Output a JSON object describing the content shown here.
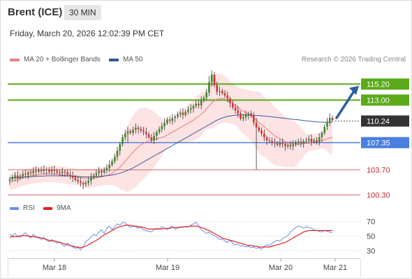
{
  "header": {
    "title": "Brent (ICE)",
    "interval": "30 MIN",
    "timestamp": "Friday, March 20, 2026 12:02:39 PM CET"
  },
  "legend": {
    "ma20_label": "MA 20 + Bollinger Bands",
    "ma50_label": "MA 50",
    "credit": "Research © 2026 Trading Central"
  },
  "colors": {
    "ma20": "#e8777a",
    "ma50": "#3a5a94",
    "bollinger_fill": "#fddede",
    "resistance": "#5aaa1a",
    "pivot": "#4a7fe0",
    "support": "#d9535a",
    "candle_up": "#3a8a2a",
    "candle_down": "#d93030",
    "current_price": "#333333",
    "arrow": "#2b5ca8",
    "rsi": "#6a8ee8",
    "rsi_ma": "#e02020"
  },
  "chart_data": [
    {
      "type": "candlestick",
      "title": "Brent (ICE)",
      "interval": "30 MIN",
      "x_labels": [
        "Mar 18",
        "Mar 19",
        "Mar 20",
        "Mar 21"
      ],
      "ylim": [
        99.3,
        117.8
      ],
      "levels": [
        {
          "role": "resistance",
          "value": 115.2,
          "label": "115.20"
        },
        {
          "role": "resistance",
          "value": 113.0,
          "label": "113.00"
        },
        {
          "role": "current",
          "value": 110.24,
          "label": "110.24"
        },
        {
          "role": "pivot",
          "value": 107.35,
          "label": "107.35"
        },
        {
          "role": "support",
          "value": 103.7,
          "label": "103.70"
        },
        {
          "role": "support",
          "value": 100.3,
          "label": "100.30"
        }
      ],
      "close": [
        102.4,
        102.6,
        102.9,
        102.5,
        102.8,
        103.1,
        103.0,
        103.3,
        103.2,
        103.5,
        103.4,
        103.6,
        103.5,
        103.7,
        103.6,
        103.4,
        103.6,
        103.5,
        103.3,
        103.2,
        103.4,
        103.3,
        103.0,
        102.8,
        102.6,
        102.3,
        102.1,
        101.9,
        101.7,
        101.9,
        102.2,
        102.6,
        102.9,
        103.2,
        103.5,
        103.3,
        103.6,
        103.9,
        104.3,
        104.8,
        105.4,
        106.2,
        107.1,
        108.0,
        108.5,
        108.8,
        108.6,
        109.0,
        109.3,
        109.1,
        108.9,
        108.7,
        108.4,
        108.0,
        107.6,
        108.2,
        108.7,
        109.1,
        109.5,
        109.9,
        110.4,
        110.2,
        110.6,
        110.8,
        111.1,
        111.3,
        111.0,
        111.4,
        111.7,
        111.9,
        112.2,
        112.5,
        112.3,
        112.9,
        113.3,
        114.0,
        115.4,
        116.4,
        115.0,
        114.1,
        114.2,
        113.9,
        113.6,
        113.2,
        112.6,
        112.0,
        111.6,
        111.2,
        110.5,
        110.7,
        111.0,
        111.2,
        110.9,
        110.0,
        109.3,
        108.9,
        108.5,
        108.0,
        107.6,
        107.5,
        107.3,
        107.2,
        107.0,
        107.3,
        107.1,
        106.8,
        107.0,
        106.8,
        107.0,
        107.3,
        107.4,
        107.2,
        107.5,
        107.6,
        107.8,
        107.4,
        107.6,
        107.4,
        108.0,
        108.6,
        109.4,
        110.1,
        110.6,
        110.3
      ],
      "series": [
        {
          "name": "MA 20 + Bollinger Bands",
          "values": [
            102.0,
            102.1,
            102.2,
            102.35,
            102.5,
            102.6,
            102.7,
            102.8,
            102.85,
            102.9,
            102.95,
            103.0,
            103.05,
            103.1,
            103.12,
            103.12,
            103.12,
            103.1,
            103.05,
            103.0,
            102.95,
            102.9,
            102.85,
            102.8,
            102.75,
            102.7,
            102.65,
            102.6,
            102.55,
            102.5,
            102.5,
            102.5,
            102.55,
            102.6,
            102.65,
            102.7,
            102.8,
            102.9,
            103.0,
            103.2,
            103.4,
            103.7,
            104.0,
            104.4,
            104.8,
            105.2,
            105.6,
            106.0,
            106.4,
            106.7,
            107.0,
            107.2,
            107.4,
            107.5,
            107.6,
            107.7,
            107.8,
            107.9,
            108.0,
            108.1,
            108.3,
            108.5,
            108.7,
            108.9,
            109.1,
            109.3,
            109.5,
            109.7,
            109.9,
            110.1,
            110.3,
            110.6,
            110.8,
            111.1,
            111.4,
            111.8,
            112.2,
            112.6,
            112.9,
            113.1,
            113.2,
            113.2,
            113.1,
            112.9,
            112.7,
            112.5,
            112.3,
            112.0,
            111.7,
            111.5,
            111.3,
            111.1,
            110.9,
            110.6,
            110.3,
            110.0,
            109.7,
            109.4,
            109.1,
            108.8,
            108.5,
            108.2,
            108.0,
            107.8,
            107.6,
            107.4,
            107.3,
            107.2,
            107.1,
            107.1,
            107.1,
            107.1,
            107.15,
            107.2,
            107.25,
            107.3,
            107.35,
            107.4,
            107.5,
            107.6,
            107.7,
            107.8,
            107.9,
            108.0
          ]
        },
        {
          "name": "MA 50",
          "values": [
            102.6,
            102.6,
            102.6,
            102.6,
            102.65,
            102.65,
            102.7,
            102.7,
            102.7,
            102.75,
            102.75,
            102.8,
            102.8,
            102.8,
            102.85,
            102.85,
            102.85,
            102.85,
            102.85,
            102.85,
            102.85,
            102.85,
            102.85,
            102.85,
            102.8,
            102.8,
            102.75,
            102.75,
            102.7,
            102.7,
            102.7,
            102.7,
            102.7,
            102.72,
            102.75,
            102.78,
            102.82,
            102.86,
            102.9,
            102.95,
            103.0,
            103.1,
            103.2,
            103.3,
            103.45,
            103.6,
            103.75,
            103.9,
            104.1,
            104.3,
            104.5,
            104.7,
            104.9,
            105.1,
            105.3,
            105.5,
            105.7,
            105.9,
            106.1,
            106.3,
            106.5,
            106.7,
            106.9,
            107.1,
            107.3,
            107.5,
            107.7,
            107.9,
            108.1,
            108.3,
            108.5,
            108.7,
            108.9,
            109.1,
            109.3,
            109.5,
            109.7,
            109.9,
            110.1,
            110.3,
            110.45,
            110.6,
            110.7,
            110.8,
            110.85,
            110.9,
            110.95,
            111.0,
            111.0,
            111.0,
            111.0,
            110.98,
            110.96,
            110.94,
            110.92,
            110.9,
            110.88,
            110.85,
            110.82,
            110.78,
            110.74,
            110.7,
            110.66,
            110.62,
            110.58,
            110.54,
            110.5,
            110.46,
            110.42,
            110.38,
            110.34,
            110.3,
            110.26,
            110.22,
            110.18,
            110.14,
            110.1,
            110.07,
            110.05,
            110.04,
            110.03,
            110.02,
            110.02,
            110.02
          ]
        }
      ]
    },
    {
      "type": "line",
      "title": "RSI",
      "ylim": [
        22,
        78
      ],
      "yticks": [
        30,
        50,
        70
      ],
      "series": [
        {
          "name": "RSI",
          "values": [
            52,
            50,
            53,
            49,
            48,
            51,
            54,
            50,
            47,
            52,
            49,
            47,
            45,
            48,
            44,
            42,
            45,
            43,
            40,
            42,
            38,
            36,
            40,
            37,
            35,
            33,
            34,
            31,
            36,
            42,
            45,
            48,
            52,
            50,
            55,
            58,
            53,
            60,
            63,
            58,
            62,
            66,
            64,
            68,
            67,
            64,
            61,
            63,
            62,
            60,
            61,
            58,
            57,
            56,
            55,
            58,
            60,
            59,
            62,
            60,
            58,
            61,
            63,
            59,
            60,
            62,
            61,
            63,
            62,
            64,
            66,
            68,
            64,
            58,
            56,
            53,
            55,
            52,
            50,
            48,
            45,
            46,
            43,
            41,
            44,
            40,
            38,
            39,
            36,
            37,
            35,
            36,
            34,
            35,
            33,
            34,
            32,
            36,
            38,
            37,
            40,
            42,
            44,
            43,
            46,
            48,
            50,
            55,
            58,
            61,
            63,
            62,
            60,
            62,
            61,
            60,
            58,
            57,
            56,
            55,
            57,
            56,
            55,
            54
          ]
        },
        {
          "name": "9MA",
          "values": [
            48,
            49,
            49,
            49,
            50,
            50,
            50,
            50,
            49,
            49,
            48,
            48,
            47,
            46,
            45,
            44,
            43,
            43,
            42,
            41,
            40,
            39,
            38,
            37,
            36,
            35,
            35,
            34,
            35,
            36,
            38,
            40,
            42,
            44,
            46,
            49,
            51,
            53,
            55,
            57,
            59,
            61,
            62,
            63,
            64,
            64,
            64,
            63,
            63,
            62,
            62,
            61,
            60,
            59,
            59,
            59,
            59,
            59,
            59,
            60,
            60,
            60,
            61,
            61,
            61,
            61,
            62,
            62,
            62,
            63,
            63,
            63,
            62,
            61,
            60,
            58,
            57,
            55,
            53,
            51,
            49,
            47,
            46,
            45,
            44,
            43,
            42,
            41,
            40,
            39,
            38,
            37,
            37,
            36,
            36,
            35,
            35,
            35,
            35,
            35,
            36,
            37,
            38,
            39,
            40,
            41,
            43,
            45,
            47,
            49,
            51,
            53,
            55,
            56,
            57,
            57,
            57,
            57,
            57,
            57,
            57,
            57,
            57,
            57
          ]
        }
      ]
    }
  ]
}
